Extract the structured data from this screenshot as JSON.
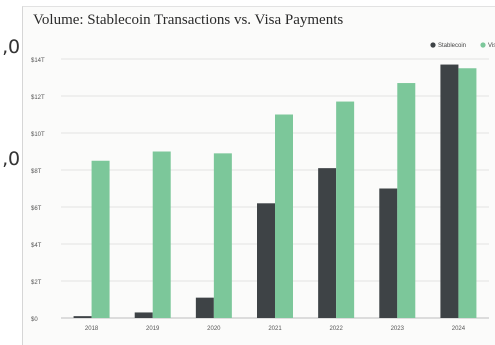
{
  "chart_data": {
    "type": "bar",
    "title": "Volume: Stablecoin Transactions vs. Visa Payments",
    "categories": [
      "2018",
      "2019",
      "2020",
      "2021",
      "2022",
      "2023",
      "2024"
    ],
    "series": [
      {
        "name": "Stablecoin",
        "color": "#3e4346",
        "values": [
          0.1,
          0.3,
          1.1,
          6.2,
          8.1,
          7.0,
          13.7
        ]
      },
      {
        "name": "Visa",
        "color": "#7cc79a",
        "values": [
          8.5,
          9.0,
          8.9,
          11.0,
          11.7,
          12.7,
          13.5
        ]
      }
    ],
    "y_ticks": [
      "$0",
      "$2T",
      "$4T",
      "$6T",
      "$8T",
      "$10T",
      "$12T",
      "$14T"
    ],
    "y_tick_values": [
      0,
      2,
      4,
      6,
      8,
      10,
      12,
      14
    ],
    "ylim": [
      0,
      14
    ],
    "xlabel": "",
    "ylabel": "",
    "grid": true,
    "legend_position": "top-right"
  },
  "side_glyphs": [
    "‚0",
    "‚0"
  ]
}
